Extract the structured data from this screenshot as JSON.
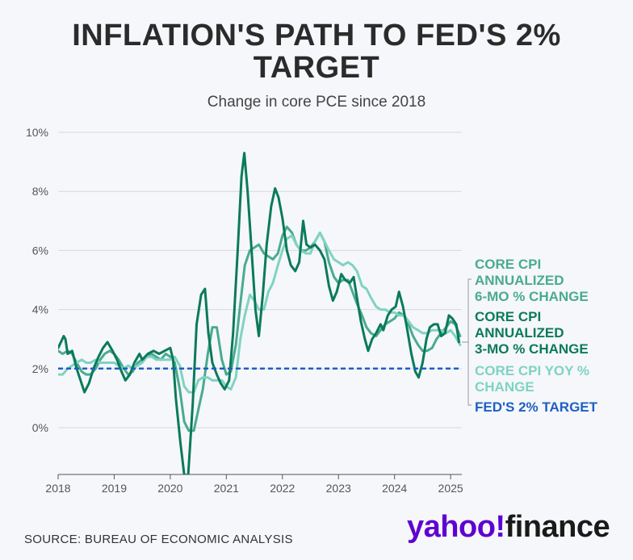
{
  "header": {
    "title_line1": "INFLATION'S PATH TO FED'S 2%",
    "title_line2": "TARGET",
    "subtitle": "Change in core PCE since 2018"
  },
  "footer": {
    "source": "SOURCE: BUREAU OF ECONOMIC ANALYSIS",
    "brand_yahoo": "yahoo!",
    "brand_finance": "finance"
  },
  "chart_data": {
    "type": "line",
    "title": "INFLATION'S PATH TO FED'S 2% TARGET",
    "subtitle": "Change in core PCE since 2018",
    "xlabel": "",
    "ylabel": "",
    "x_ticks": [
      "2018",
      "2019",
      "2020",
      "2021",
      "2022",
      "2023",
      "2024",
      "2025"
    ],
    "y_ticks": [
      "10%",
      "8%",
      "6%",
      "4%",
      "2%",
      "0%"
    ],
    "xlim": [
      2018.0,
      2025.2
    ],
    "ylim": [
      -1.6,
      10
    ],
    "grid": "horizontal",
    "legend_placement": "right",
    "series": [
      {
        "name": "CORE CPI ANNUALIZED 6-MO % CHANGE",
        "color": "#4aab8e",
        "points": [
          [
            2018.0,
            2.6
          ],
          [
            2018.08,
            2.5
          ],
          [
            2018.17,
            2.6
          ],
          [
            2018.25,
            2.5
          ],
          [
            2018.33,
            2.2
          ],
          [
            2018.42,
            1.9
          ],
          [
            2018.5,
            1.8
          ],
          [
            2018.58,
            1.8
          ],
          [
            2018.67,
            2.0
          ],
          [
            2018.75,
            2.3
          ],
          [
            2018.83,
            2.5
          ],
          [
            2018.92,
            2.6
          ],
          [
            2019.0,
            2.5
          ],
          [
            2019.08,
            2.3
          ],
          [
            2019.17,
            2.0
          ],
          [
            2019.25,
            1.8
          ],
          [
            2019.33,
            1.9
          ],
          [
            2019.42,
            2.2
          ],
          [
            2019.5,
            2.3
          ],
          [
            2019.58,
            2.4
          ],
          [
            2019.67,
            2.5
          ],
          [
            2019.75,
            2.4
          ],
          [
            2019.83,
            2.3
          ],
          [
            2019.92,
            2.5
          ],
          [
            2020.0,
            2.4
          ],
          [
            2020.08,
            2.2
          ],
          [
            2020.17,
            1.3
          ],
          [
            2020.25,
            0.2
          ],
          [
            2020.33,
            -0.1
          ],
          [
            2020.42,
            -0.1
          ],
          [
            2020.5,
            0.6
          ],
          [
            2020.58,
            1.3
          ],
          [
            2020.67,
            2.5
          ],
          [
            2020.75,
            3.4
          ],
          [
            2020.83,
            3.4
          ],
          [
            2020.92,
            2.3
          ],
          [
            2021.0,
            1.8
          ],
          [
            2021.08,
            1.9
          ],
          [
            2021.17,
            2.8
          ],
          [
            2021.25,
            4.2
          ],
          [
            2021.33,
            5.5
          ],
          [
            2021.42,
            6.0
          ],
          [
            2021.5,
            6.1
          ],
          [
            2021.58,
            6.2
          ],
          [
            2021.67,
            5.9
          ],
          [
            2021.75,
            5.8
          ],
          [
            2021.83,
            5.7
          ],
          [
            2021.92,
            5.9
          ],
          [
            2022.0,
            6.5
          ],
          [
            2022.08,
            6.8
          ],
          [
            2022.17,
            6.6
          ],
          [
            2022.25,
            6.2
          ],
          [
            2022.33,
            6.0
          ],
          [
            2022.42,
            6.0
          ],
          [
            2022.5,
            6.1
          ],
          [
            2022.58,
            6.3
          ],
          [
            2022.67,
            6.6
          ],
          [
            2022.75,
            6.3
          ],
          [
            2022.83,
            5.6
          ],
          [
            2022.92,
            5.1
          ],
          [
            2023.0,
            4.9
          ],
          [
            2023.08,
            5.0
          ],
          [
            2023.17,
            5.0
          ],
          [
            2023.25,
            4.6
          ],
          [
            2023.33,
            4.2
          ],
          [
            2023.42,
            3.8
          ],
          [
            2023.5,
            3.4
          ],
          [
            2023.58,
            3.2
          ],
          [
            2023.67,
            3.1
          ],
          [
            2023.75,
            3.3
          ],
          [
            2023.83,
            3.5
          ],
          [
            2023.92,
            3.6
          ],
          [
            2024.0,
            3.7
          ],
          [
            2024.08,
            3.9
          ],
          [
            2024.17,
            3.8
          ],
          [
            2024.25,
            3.5
          ],
          [
            2024.33,
            3.1
          ],
          [
            2024.42,
            2.8
          ],
          [
            2024.5,
            2.6
          ],
          [
            2024.58,
            2.6
          ],
          [
            2024.67,
            2.7
          ],
          [
            2024.75,
            3.0
          ],
          [
            2024.83,
            3.2
          ],
          [
            2024.92,
            3.4
          ],
          [
            2025.0,
            3.6
          ],
          [
            2025.08,
            3.5
          ],
          [
            2025.17,
            3.1
          ]
        ]
      },
      {
        "name": "CORE CPI ANNUALIZED 3-MO % CHANGE",
        "color": "#0b7a5a",
        "points": [
          [
            2018.0,
            2.7
          ],
          [
            2018.05,
            2.9
          ],
          [
            2018.1,
            3.1
          ],
          [
            2018.13,
            3.0
          ],
          [
            2018.17,
            2.5
          ],
          [
            2018.25,
            2.6
          ],
          [
            2018.33,
            2.0
          ],
          [
            2018.4,
            1.6
          ],
          [
            2018.47,
            1.2
          ],
          [
            2018.55,
            1.5
          ],
          [
            2018.63,
            2.0
          ],
          [
            2018.72,
            2.4
          ],
          [
            2018.8,
            2.7
          ],
          [
            2018.88,
            2.9
          ],
          [
            2018.97,
            2.6
          ],
          [
            2019.05,
            2.3
          ],
          [
            2019.13,
            1.9
          ],
          [
            2019.2,
            1.6
          ],
          [
            2019.28,
            1.8
          ],
          [
            2019.36,
            2.2
          ],
          [
            2019.45,
            2.5
          ],
          [
            2019.5,
            2.3
          ],
          [
            2019.6,
            2.5
          ],
          [
            2019.7,
            2.6
          ],
          [
            2019.8,
            2.5
          ],
          [
            2019.9,
            2.6
          ],
          [
            2020.0,
            2.7
          ],
          [
            2020.05,
            2.3
          ],
          [
            2020.1,
            1.0
          ],
          [
            2020.18,
            -0.5
          ],
          [
            2020.25,
            -1.6
          ],
          [
            2020.32,
            -1.6
          ],
          [
            2020.4,
            0.8
          ],
          [
            2020.47,
            3.5
          ],
          [
            2020.55,
            4.5
          ],
          [
            2020.62,
            4.7
          ],
          [
            2020.68,
            3.2
          ],
          [
            2020.75,
            2.2
          ],
          [
            2020.83,
            1.8
          ],
          [
            2020.9,
            1.5
          ],
          [
            2020.97,
            1.3
          ],
          [
            2021.05,
            1.6
          ],
          [
            2021.12,
            3.2
          ],
          [
            2021.2,
            5.9
          ],
          [
            2021.27,
            8.5
          ],
          [
            2021.32,
            9.3
          ],
          [
            2021.38,
            8.0
          ],
          [
            2021.45,
            6.0
          ],
          [
            2021.52,
            4.0
          ],
          [
            2021.58,
            3.1
          ],
          [
            2021.65,
            4.5
          ],
          [
            2021.72,
            6.2
          ],
          [
            2021.8,
            7.5
          ],
          [
            2021.87,
            8.1
          ],
          [
            2021.93,
            7.8
          ],
          [
            2022.0,
            7.1
          ],
          [
            2022.08,
            6.0
          ],
          [
            2022.15,
            5.5
          ],
          [
            2022.23,
            5.3
          ],
          [
            2022.3,
            5.6
          ],
          [
            2022.37,
            7.0
          ],
          [
            2022.43,
            6.2
          ],
          [
            2022.5,
            6.1
          ],
          [
            2022.58,
            6.2
          ],
          [
            2022.67,
            6.0
          ],
          [
            2022.75,
            5.7
          ],
          [
            2022.83,
            4.8
          ],
          [
            2022.9,
            4.3
          ],
          [
            2022.97,
            4.6
          ],
          [
            2023.05,
            5.2
          ],
          [
            2023.12,
            5.0
          ],
          [
            2023.2,
            4.9
          ],
          [
            2023.27,
            5.1
          ],
          [
            2023.33,
            4.4
          ],
          [
            2023.4,
            3.6
          ],
          [
            2023.47,
            3.0
          ],
          [
            2023.53,
            2.6
          ],
          [
            2023.6,
            3.0
          ],
          [
            2023.67,
            3.2
          ],
          [
            2023.75,
            3.5
          ],
          [
            2023.8,
            3.3
          ],
          [
            2023.88,
            3.8
          ],
          [
            2023.95,
            4.0
          ],
          [
            2024.02,
            4.1
          ],
          [
            2024.08,
            4.6
          ],
          [
            2024.15,
            4.1
          ],
          [
            2024.22,
            3.4
          ],
          [
            2024.3,
            2.5
          ],
          [
            2024.37,
            1.9
          ],
          [
            2024.43,
            1.7
          ],
          [
            2024.5,
            2.2
          ],
          [
            2024.57,
            3.0
          ],
          [
            2024.63,
            3.4
          ],
          [
            2024.7,
            3.5
          ],
          [
            2024.77,
            3.5
          ],
          [
            2024.83,
            3.1
          ],
          [
            2024.9,
            3.2
          ],
          [
            2024.97,
            3.8
          ],
          [
            2025.03,
            3.7
          ],
          [
            2025.1,
            3.5
          ],
          [
            2025.15,
            2.9
          ]
        ]
      },
      {
        "name": "CORE CPI YOY % CHANGE",
        "color": "#7fd3c3",
        "points": [
          [
            2018.0,
            1.8
          ],
          [
            2018.08,
            1.8
          ],
          [
            2018.17,
            2.0
          ],
          [
            2018.25,
            2.1
          ],
          [
            2018.33,
            2.2
          ],
          [
            2018.42,
            2.3
          ],
          [
            2018.5,
            2.2
          ],
          [
            2018.58,
            2.2
          ],
          [
            2018.67,
            2.3
          ],
          [
            2018.75,
            2.2
          ],
          [
            2018.83,
            2.2
          ],
          [
            2018.92,
            2.2
          ],
          [
            2019.0,
            2.2
          ],
          [
            2019.08,
            2.1
          ],
          [
            2019.17,
            2.0
          ],
          [
            2019.25,
            2.1
          ],
          [
            2019.33,
            2.0
          ],
          [
            2019.42,
            2.1
          ],
          [
            2019.5,
            2.2
          ],
          [
            2019.58,
            2.4
          ],
          [
            2019.67,
            2.4
          ],
          [
            2019.75,
            2.3
          ],
          [
            2019.83,
            2.3
          ],
          [
            2019.92,
            2.3
          ],
          [
            2020.0,
            2.3
          ],
          [
            2020.08,
            2.4
          ],
          [
            2020.17,
            2.1
          ],
          [
            2020.25,
            1.4
          ],
          [
            2020.33,
            1.2
          ],
          [
            2020.42,
            1.2
          ],
          [
            2020.5,
            1.6
          ],
          [
            2020.58,
            1.7
          ],
          [
            2020.67,
            1.7
          ],
          [
            2020.75,
            1.6
          ],
          [
            2020.83,
            1.6
          ],
          [
            2020.92,
            1.6
          ],
          [
            2021.0,
            1.4
          ],
          [
            2021.08,
            1.3
          ],
          [
            2021.17,
            1.7
          ],
          [
            2021.25,
            3.0
          ],
          [
            2021.33,
            3.8
          ],
          [
            2021.42,
            4.5
          ],
          [
            2021.5,
            4.3
          ],
          [
            2021.58,
            4.0
          ],
          [
            2021.67,
            4.0
          ],
          [
            2021.75,
            4.6
          ],
          [
            2021.83,
            4.9
          ],
          [
            2021.92,
            5.5
          ],
          [
            2022.0,
            6.0
          ],
          [
            2022.08,
            6.4
          ],
          [
            2022.17,
            6.5
          ],
          [
            2022.25,
            6.2
          ],
          [
            2022.33,
            6.0
          ],
          [
            2022.42,
            5.9
          ],
          [
            2022.5,
            5.9
          ],
          [
            2022.58,
            6.3
          ],
          [
            2022.67,
            6.6
          ],
          [
            2022.75,
            6.3
          ],
          [
            2022.83,
            6.0
          ],
          [
            2022.92,
            5.7
          ],
          [
            2023.0,
            5.6
          ],
          [
            2023.08,
            5.5
          ],
          [
            2023.17,
            5.6
          ],
          [
            2023.25,
            5.5
          ],
          [
            2023.33,
            5.3
          ],
          [
            2023.42,
            4.8
          ],
          [
            2023.5,
            4.7
          ],
          [
            2023.58,
            4.4
          ],
          [
            2023.67,
            4.1
          ],
          [
            2023.75,
            4.0
          ],
          [
            2023.83,
            4.0
          ],
          [
            2023.92,
            3.9
          ],
          [
            2024.0,
            3.9
          ],
          [
            2024.08,
            3.8
          ],
          [
            2024.17,
            3.8
          ],
          [
            2024.25,
            3.6
          ],
          [
            2024.33,
            3.4
          ],
          [
            2024.42,
            3.3
          ],
          [
            2024.5,
            3.2
          ],
          [
            2024.58,
            3.2
          ],
          [
            2024.67,
            3.3
          ],
          [
            2024.75,
            3.3
          ],
          [
            2024.83,
            3.3
          ],
          [
            2024.92,
            3.2
          ],
          [
            2025.0,
            3.3
          ],
          [
            2025.08,
            3.1
          ],
          [
            2025.17,
            2.8
          ]
        ]
      },
      {
        "name": "FED'S 2% TARGET",
        "color": "#1f5fc4",
        "dashed": true,
        "points": [
          [
            2018.0,
            2.0
          ],
          [
            2025.2,
            2.0
          ]
        ]
      }
    ]
  }
}
